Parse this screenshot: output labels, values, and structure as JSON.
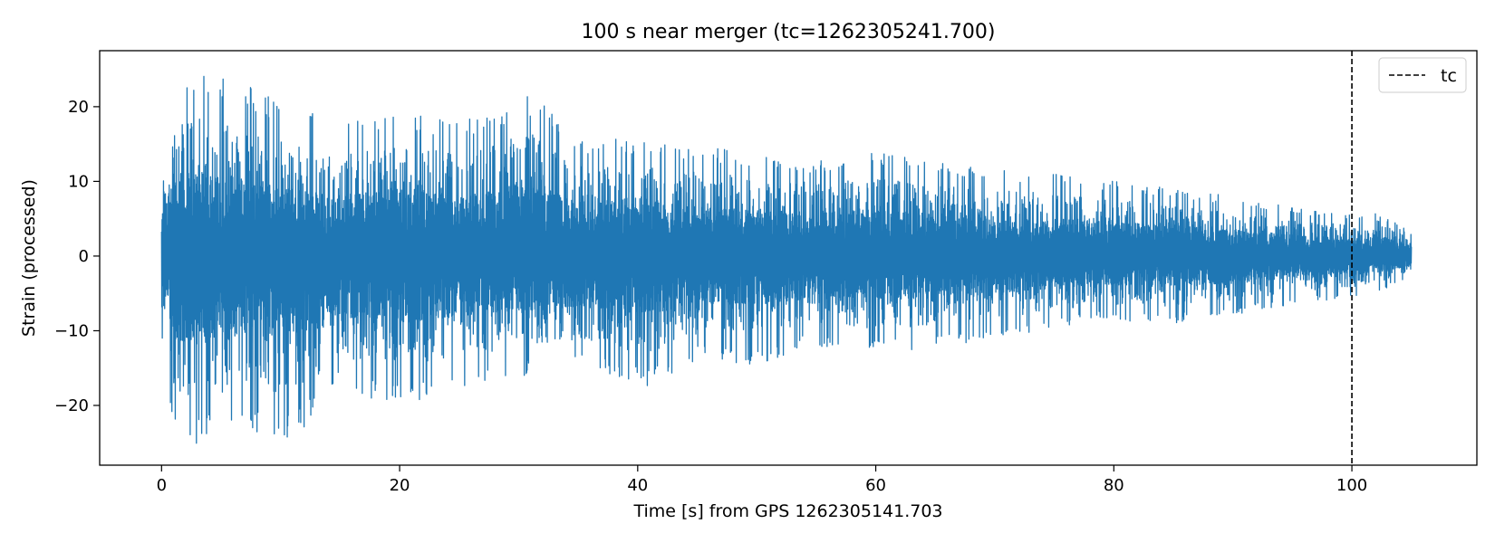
{
  "chart_data": {
    "type": "line",
    "title": "100 s near merger (tc=1262305241.700)",
    "xlabel": "Time [s] from GPS 1262305141.703",
    "ylabel": "Strain (processed)",
    "xlim": [
      -5.2,
      110.5
    ],
    "ylim": [
      -28,
      27.5
    ],
    "x_ticks": [
      0,
      20,
      40,
      60,
      80,
      100
    ],
    "x_tick_labels": [
      "0",
      "20",
      "40",
      "60",
      "80",
      "100"
    ],
    "y_ticks": [
      -20,
      -10,
      0,
      10,
      20
    ],
    "y_tick_labels": [
      "−20",
      "−10",
      "0",
      "10",
      "20"
    ],
    "grid": false,
    "legend": {
      "placement": "top-right",
      "entries": [
        "tc"
      ]
    },
    "series": [
      {
        "line_color": "#1f77b4",
        "x_range": [
          0,
          105
        ],
        "envelope": [
          {
            "x": 0,
            "min": -15,
            "max": 13.5
          },
          {
            "x": 1.3,
            "min": -25.5,
            "max": 24.8
          },
          {
            "x": 5.3,
            "min": -24.5,
            "max": 24.5
          },
          {
            "x": 11.2,
            "min": -24.5,
            "max": 20
          },
          {
            "x": 15,
            "min": -18,
            "max": 18
          },
          {
            "x": 20,
            "min": -20,
            "max": 20.5
          },
          {
            "x": 25,
            "min": -18,
            "max": 18
          },
          {
            "x": 31,
            "min": -16,
            "max": 22
          },
          {
            "x": 35,
            "min": -15,
            "max": 16
          },
          {
            "x": 41,
            "min": -17.5,
            "max": 16
          },
          {
            "x": 45,
            "min": -14,
            "max": 15
          },
          {
            "x": 50,
            "min": -14.5,
            "max": 14
          },
          {
            "x": 55,
            "min": -12,
            "max": 13
          },
          {
            "x": 60,
            "min": -13,
            "max": 14
          },
          {
            "x": 65,
            "min": -12.5,
            "max": 12.5
          },
          {
            "x": 70,
            "min": -11,
            "max": 12
          },
          {
            "x": 75,
            "min": -10,
            "max": 11
          },
          {
            "x": 78.5,
            "min": -8.5,
            "max": 10.5
          },
          {
            "x": 85,
            "min": -9,
            "max": 9
          },
          {
            "x": 90,
            "min": -8,
            "max": 8
          },
          {
            "x": 95,
            "min": -6.5,
            "max": 6.5
          },
          {
            "x": 100,
            "min": -5.5,
            "max": 5.5
          },
          {
            "x": 102,
            "min": -5,
            "max": 6.5
          },
          {
            "x": 105,
            "min": -3,
            "max": 3
          }
        ]
      }
    ],
    "vlines": [
      {
        "x": 100,
        "label": "tc",
        "color": "#000000",
        "style": "dashed"
      }
    ]
  }
}
